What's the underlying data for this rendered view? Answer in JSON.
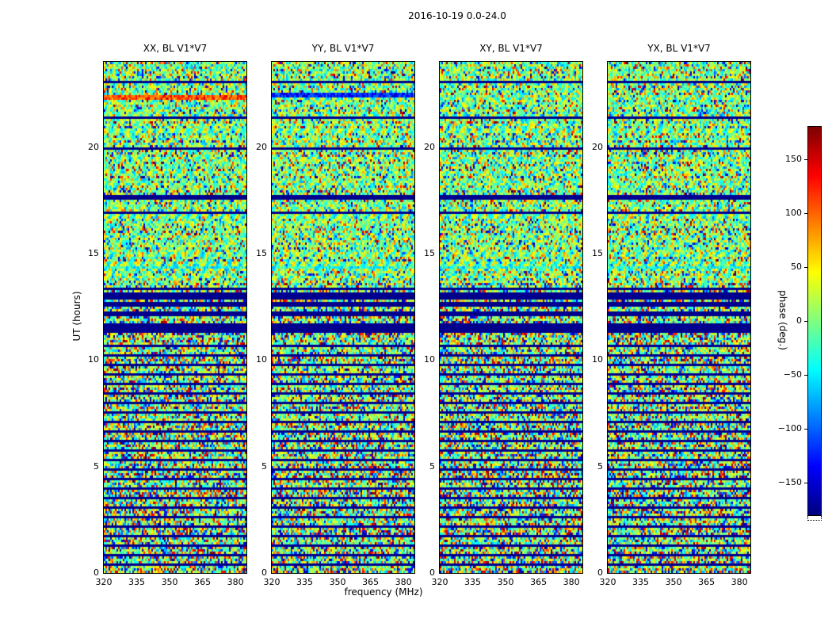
{
  "title": "2016-10-19 0.0-24.0",
  "axes": {
    "x_label": "frequency (MHz)",
    "y_label": "UT (hours)",
    "x_ticks": [
      320,
      335,
      350,
      365,
      380
    ],
    "y_ticks": [
      0,
      5,
      10,
      15,
      20
    ],
    "x_range": [
      320,
      385
    ],
    "y_range": [
      0,
      24
    ]
  },
  "panels": [
    {
      "code": "XX",
      "title": "XX, BL V1*V7"
    },
    {
      "code": "YY",
      "title": "YY, BL V1*V7"
    },
    {
      "code": "XY",
      "title": "XY, BL V1*V7"
    },
    {
      "code": "YX",
      "title": "YX, BL V1*V7"
    }
  ],
  "colorbar": {
    "label": "phase (deg.)",
    "ticks": [
      150,
      100,
      50,
      0,
      -50,
      -100,
      -150
    ],
    "range": [
      -180,
      180
    ],
    "colormap": "jet"
  },
  "chart_data": {
    "type": "heatmap",
    "title": "2016-10-19 0.0-24.0",
    "xlabel": "frequency (MHz)",
    "ylabel": "UT (hours)",
    "xlim": [
      320,
      385
    ],
    "ylim": [
      0,
      24
    ],
    "value_label": "phase (deg.)",
    "value_range": [
      -180,
      180
    ],
    "colormap": "jet",
    "panels": [
      "XX, BL V1*V7",
      "YY, BL V1*V7",
      "XY, BL V1*V7",
      "YX, BL V1*V7"
    ],
    "description": "Visibility phase vs frequency and UT for four polarization products (XX, YY, XY, YX) of baseline V1*V7. Background is decorrelated random phase noise; dark-blue horizontal bands mark flagged/low-signal time ranges, denser below UT 13.5 with a heavily flagged block near UT 11.3-13.5.",
    "features": {
      "flagged_ut_bands": [
        [
          0.29,
          0.41
        ],
        [
          0.74,
          0.86
        ],
        [
          1.19,
          1.31
        ],
        [
          1.64,
          1.76
        ],
        [
          2.09,
          2.21
        ],
        [
          2.54,
          2.66
        ],
        [
          2.99,
          3.11
        ],
        [
          3.44,
          3.56
        ],
        [
          3.89,
          4.01
        ],
        [
          4.34,
          4.46
        ],
        [
          4.79,
          4.91
        ],
        [
          5.24,
          5.36
        ],
        [
          5.69,
          5.81
        ],
        [
          6.14,
          6.26
        ],
        [
          6.59,
          6.71
        ],
        [
          7.04,
          7.16
        ],
        [
          7.49,
          7.61
        ],
        [
          7.94,
          8.06
        ],
        [
          8.39,
          8.51
        ],
        [
          8.84,
          8.96
        ],
        [
          9.29,
          9.41
        ],
        [
          9.74,
          9.86
        ],
        [
          10.19,
          10.31
        ],
        [
          10.64,
          10.76
        ],
        [
          11.25,
          11.75
        ],
        [
          12.05,
          12.3
        ],
        [
          12.5,
          12.75
        ],
        [
          12.85,
          13.15
        ],
        [
          13.25,
          13.45
        ],
        [
          14.05,
          14.12
        ],
        [
          16.85,
          16.92
        ],
        [
          17.55,
          17.75
        ],
        [
          19.9,
          19.97
        ],
        [
          21.35,
          21.45
        ],
        [
          23.0,
          23.07
        ]
      ],
      "streaks": [
        {
          "panel": "XX",
          "ut": 22.35,
          "phase_deg": 110,
          "spread": 40,
          "half_width": 0.12,
          "description": "bright yellow-orange horizontal streak"
        },
        {
          "panel": "YY",
          "ut": 22.4,
          "phase_deg": -125,
          "spread": 35,
          "half_width": 0.12,
          "description": "dark blue horizontal streak"
        },
        {
          "panel": "ALL",
          "ut": 14.32,
          "phase_deg": -35,
          "spread": 45,
          "half_width": 0.07,
          "description": "thin coherent fringe line across all panels"
        }
      ]
    }
  }
}
